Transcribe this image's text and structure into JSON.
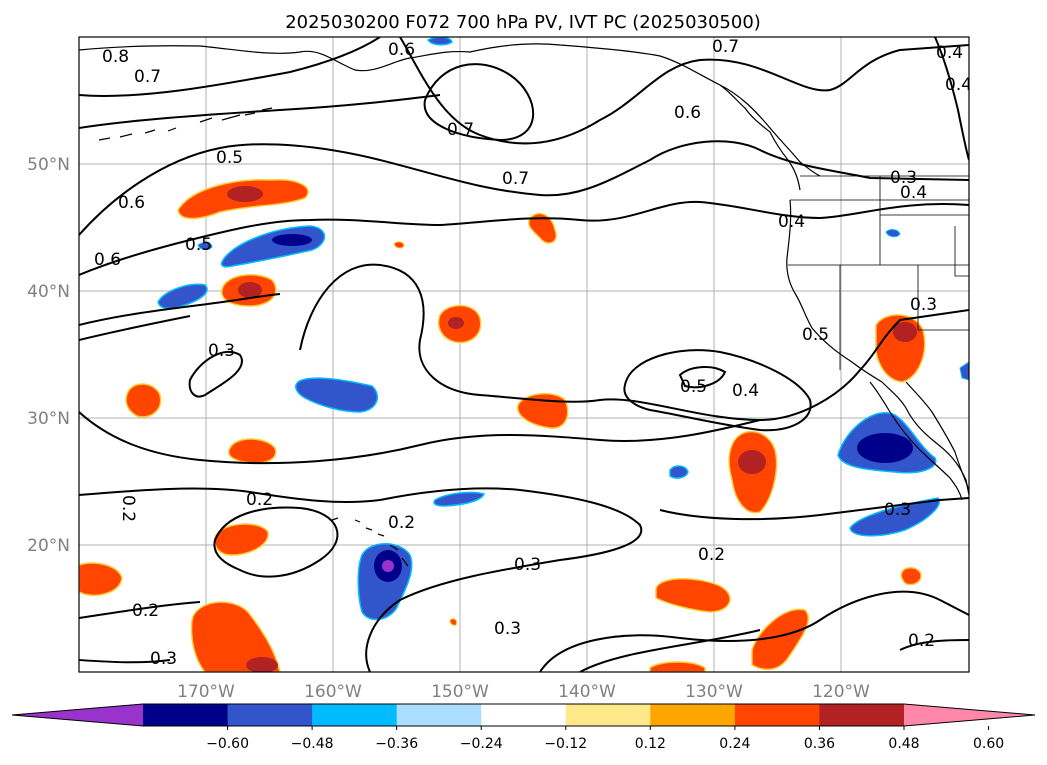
{
  "title": "2025030200 F072 700 hPa PV, IVT PC (2025030500)",
  "map": {
    "lon_labels": [
      "170°W",
      "160°W",
      "150°W",
      "140°W",
      "130°W",
      "120°W"
    ],
    "lat_labels": [
      "50°N",
      "40°N",
      "30°N",
      "20°N"
    ],
    "extent": {
      "lon": [
        -180,
        -110
      ],
      "lat": [
        10,
        60
      ]
    },
    "gridlines": true,
    "contour_labels": [
      "0.8",
      "0.7",
      "0.6",
      "0.7",
      "0.6",
      "0.7",
      "0.4",
      "0.5",
      "0.7",
      "0.6",
      "0.4",
      "0.5",
      "0.6",
      "0.4",
      "0.4",
      "0.3",
      "0.3",
      "0.5",
      "0.4",
      "0.5",
      "0.3",
      "0.2",
      "0.2",
      "0.2",
      "0.3",
      "0.2",
      "0.3",
      "0.3",
      "0.2",
      "0.3",
      "0.2"
    ]
  },
  "colorbar": {
    "tick_labels": [
      "−0.60",
      "−0.48",
      "−0.36",
      "−0.24",
      "−0.12",
      "0.12",
      "0.24",
      "0.36",
      "0.48",
      "0.60"
    ],
    "colors": [
      "#9933cc",
      "#00008b",
      "#3355cc",
      "#00bbff",
      "#aaddff",
      "#ffffff",
      "#ffe88a",
      "#ffa500",
      "#ff4500",
      "#b22222",
      "#ff88aa"
    ],
    "extend": "both"
  }
}
